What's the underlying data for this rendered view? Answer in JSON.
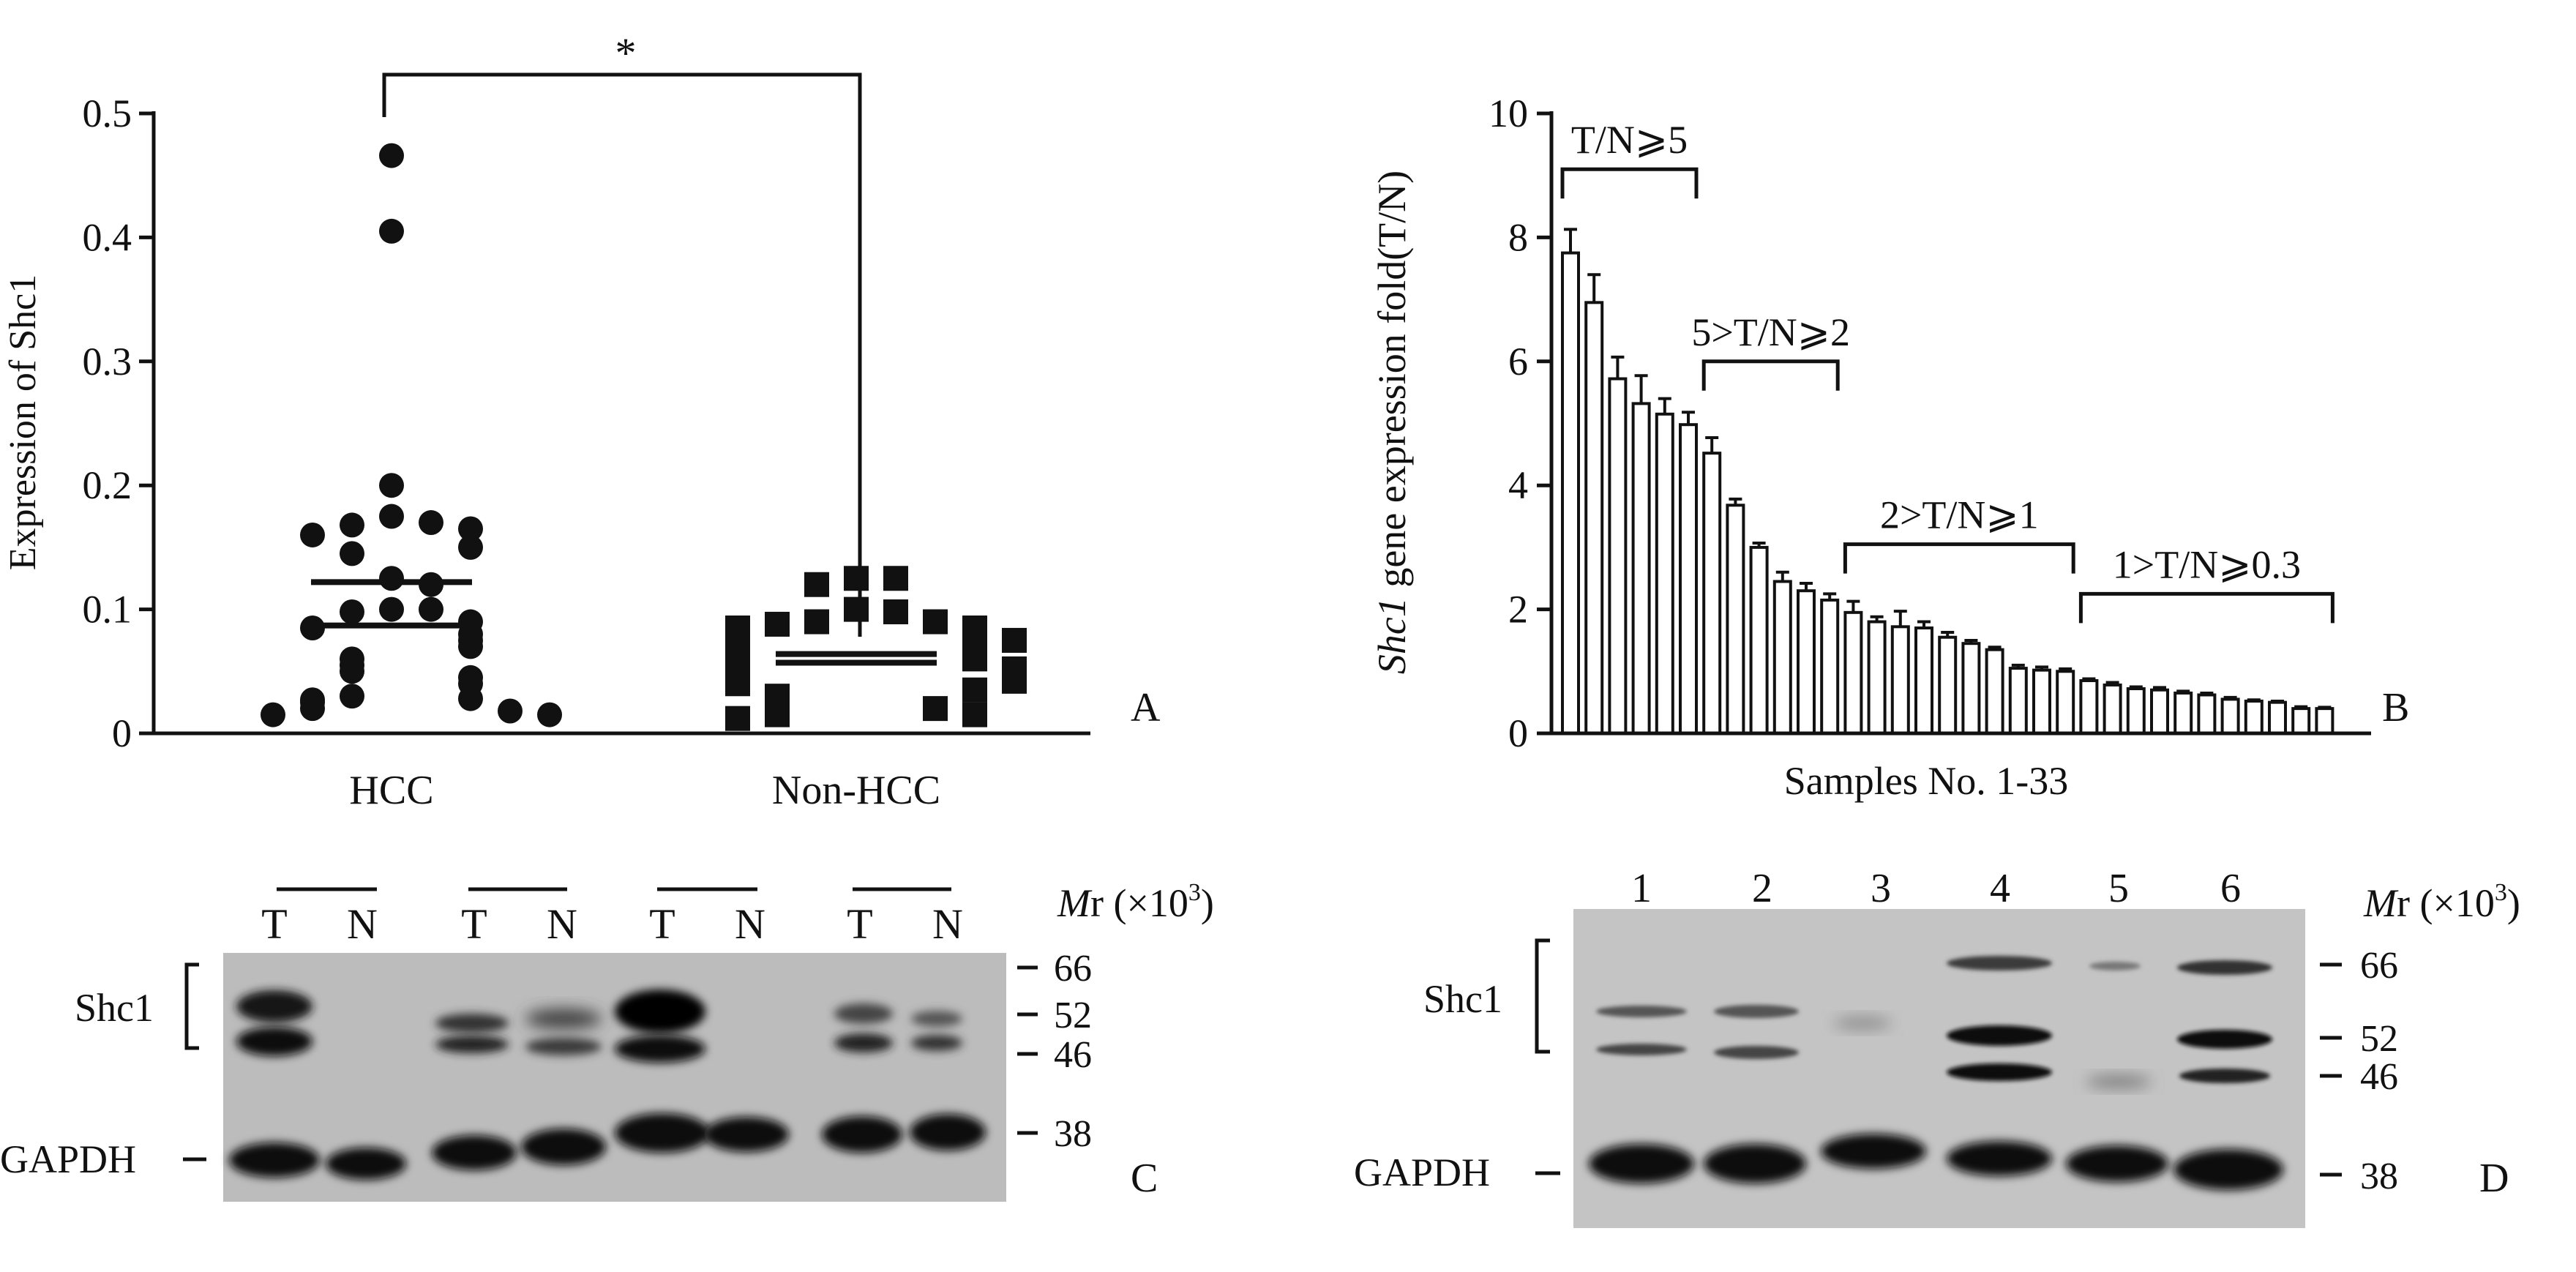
{
  "panelA": {
    "letter": "A",
    "ylabel": "Expression of Shc1",
    "significance": "*",
    "yticks": [
      "0",
      "0.1",
      "0.2",
      "0.3",
      "0.4",
      "0.5"
    ],
    "groups": [
      "HCC",
      "Non-HCC"
    ]
  },
  "panelB": {
    "letter": "B",
    "ylabel_gene": "Shc1",
    "ylabel_rest": " gene expression fold(T/N)",
    "xlabel": "Samples No. 1-33",
    "yticks": [
      "0",
      "2",
      "4",
      "6",
      "8",
      "10"
    ],
    "brackets": [
      "T/N⩾5",
      "5>T/N⩾2",
      "2>T/N⩾1",
      "1>T/N⩾0.3"
    ]
  },
  "panelC": {
    "letter": "C",
    "lane_labels": [
      "T",
      "N",
      "T",
      "N",
      "T",
      "N",
      "T",
      "N"
    ],
    "band_label": "Shc1",
    "loading_label": "GAPDH",
    "mr_italic": "M",
    "mr_rest": "r (×10",
    "mr_sup": "3",
    "mr_close": ")",
    "markers": [
      "66",
      "52",
      "46",
      "38"
    ]
  },
  "panelD": {
    "letter": "D",
    "lane_labels": [
      "1",
      "2",
      "3",
      "4",
      "5",
      "6"
    ],
    "band_label": "Shc1",
    "loading_label": "GAPDH",
    "mr_italic": "M",
    "mr_rest": "r (×10",
    "mr_sup": "3",
    "mr_close": ")",
    "markers": [
      "66",
      "52",
      "46",
      "38"
    ]
  },
  "chart_data": [
    {
      "panel": "A",
      "type": "scatter",
      "title": "",
      "xlabel": "",
      "ylabel": "Expression of Shc1",
      "categories": [
        "HCC",
        "Non-HCC"
      ],
      "ylim": [
        0,
        0.5
      ],
      "series": [
        {
          "name": "HCC",
          "marker": "circle",
          "mean": 0.122,
          "sem_low": 0.087,
          "values": [
            0.466,
            0.405,
            0.2,
            0.175,
            0.17,
            0.168,
            0.165,
            0.16,
            0.15,
            0.145,
            0.125,
            0.12,
            0.1,
            0.1,
            0.098,
            0.09,
            0.085,
            0.08,
            0.075,
            0.07,
            0.06,
            0.055,
            0.05,
            0.045,
            0.04,
            0.03,
            0.028,
            0.027,
            0.025,
            0.02,
            0.018,
            0.015,
            0.015
          ]
        },
        {
          "name": "Non-HCC",
          "marker": "square",
          "mean": 0.064,
          "sem_low": 0.057,
          "values": [
            0.125,
            0.125,
            0.12,
            0.1,
            0.098,
            0.09,
            0.09,
            0.088,
            0.085,
            0.085,
            0.08,
            0.078,
            0.075,
            0.07,
            0.068,
            0.065,
            0.06,
            0.06,
            0.058,
            0.055,
            0.052,
            0.05,
            0.045,
            0.042,
            0.04,
            0.035,
            0.03,
            0.025,
            0.02,
            0.02,
            0.015,
            0.015,
            0.012
          ]
        }
      ],
      "significance": "*"
    },
    {
      "panel": "B",
      "type": "bar",
      "title": "",
      "xlabel": "Samples No. 1-33",
      "ylabel": "Shc1 gene expression fold(T/N)",
      "ylim": [
        0,
        10
      ],
      "x": [
        1,
        2,
        3,
        4,
        5,
        6,
        7,
        8,
        9,
        10,
        11,
        12,
        13,
        14,
        15,
        16,
        17,
        18,
        19,
        20,
        21,
        22,
        23,
        24,
        25,
        26,
        27,
        28,
        29,
        30,
        31,
        32,
        33
      ],
      "values": [
        7.75,
        6.95,
        5.72,
        5.32,
        5.15,
        4.98,
        4.52,
        3.68,
        3.0,
        2.45,
        2.3,
        2.15,
        1.95,
        1.8,
        1.72,
        1.7,
        1.55,
        1.45,
        1.35,
        1.05,
        1.02,
        1.0,
        0.85,
        0.78,
        0.72,
        0.7,
        0.65,
        0.62,
        0.55,
        0.52,
        0.5,
        0.4,
        0.4
      ],
      "errors": [
        0.38,
        0.45,
        0.35,
        0.45,
        0.25,
        0.2,
        0.25,
        0.1,
        0.07,
        0.15,
        0.12,
        0.1,
        0.18,
        0.08,
        0.25,
        0.1,
        0.08,
        0.05,
        0.04,
        0.05,
        0.05,
        0.04,
        0.03,
        0.04,
        0.03,
        0.04,
        0.03,
        0.03,
        0.03,
        0.02,
        0.02,
        0.03,
        0.02
      ],
      "brackets": [
        {
          "label": "T/N⩾5",
          "from": 1,
          "to": 6
        },
        {
          "label": "5>T/N⩾2",
          "from": 7,
          "to": 12
        },
        {
          "label": "2>T/N⩾1",
          "from": 13,
          "to": 22
        },
        {
          "label": "1>T/N⩾0.3",
          "from": 23,
          "to": 33
        }
      ]
    }
  ]
}
